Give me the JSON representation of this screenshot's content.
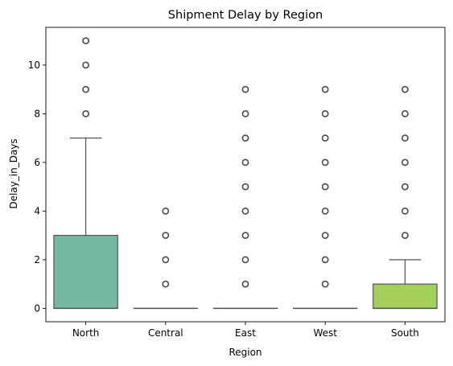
{
  "chart_data": {
    "type": "box",
    "title": "Shipment Delay by Region",
    "xlabel": "Region",
    "ylabel": "Delay_in_Days",
    "ylim": [
      -0.55,
      11.55
    ],
    "yticks": [
      0,
      2,
      4,
      6,
      8,
      10
    ],
    "grid": false,
    "legend": "none",
    "categories": [
      "North",
      "Central",
      "East",
      "West",
      "South"
    ],
    "boxes": [
      {
        "category": "North",
        "q1": 0,
        "median": 0,
        "q3": 3,
        "whisker_low": 0,
        "whisker_high": 7,
        "outliers": [
          8,
          9,
          10,
          11
        ],
        "color": "#76b8a2"
      },
      {
        "category": "Central",
        "q1": 0,
        "median": 0,
        "q3": 0,
        "whisker_low": 0,
        "whisker_high": 0,
        "outliers": [
          1,
          2,
          3,
          4
        ],
        "color": "#7fbf9c"
      },
      {
        "category": "East",
        "q1": 0,
        "median": 0,
        "q3": 0,
        "whisker_low": 0,
        "whisker_high": 0,
        "outliers": [
          1,
          2,
          3,
          4,
          5,
          6,
          7,
          8,
          9
        ],
        "color": "#78c48a"
      },
      {
        "category": "West",
        "q1": 0,
        "median": 0,
        "q3": 0,
        "whisker_low": 0,
        "whisker_high": 0,
        "outliers": [
          1,
          2,
          3,
          4,
          5,
          6,
          7,
          8,
          9
        ],
        "color": "#8fca72"
      },
      {
        "category": "South",
        "q1": 0,
        "median": 0,
        "q3": 1,
        "whisker_low": 0,
        "whisker_high": 2,
        "outliers": [
          3,
          4,
          5,
          6,
          7,
          8,
          9
        ],
        "color": "#a4cf5c"
      }
    ],
    "line_color": "#555555"
  }
}
